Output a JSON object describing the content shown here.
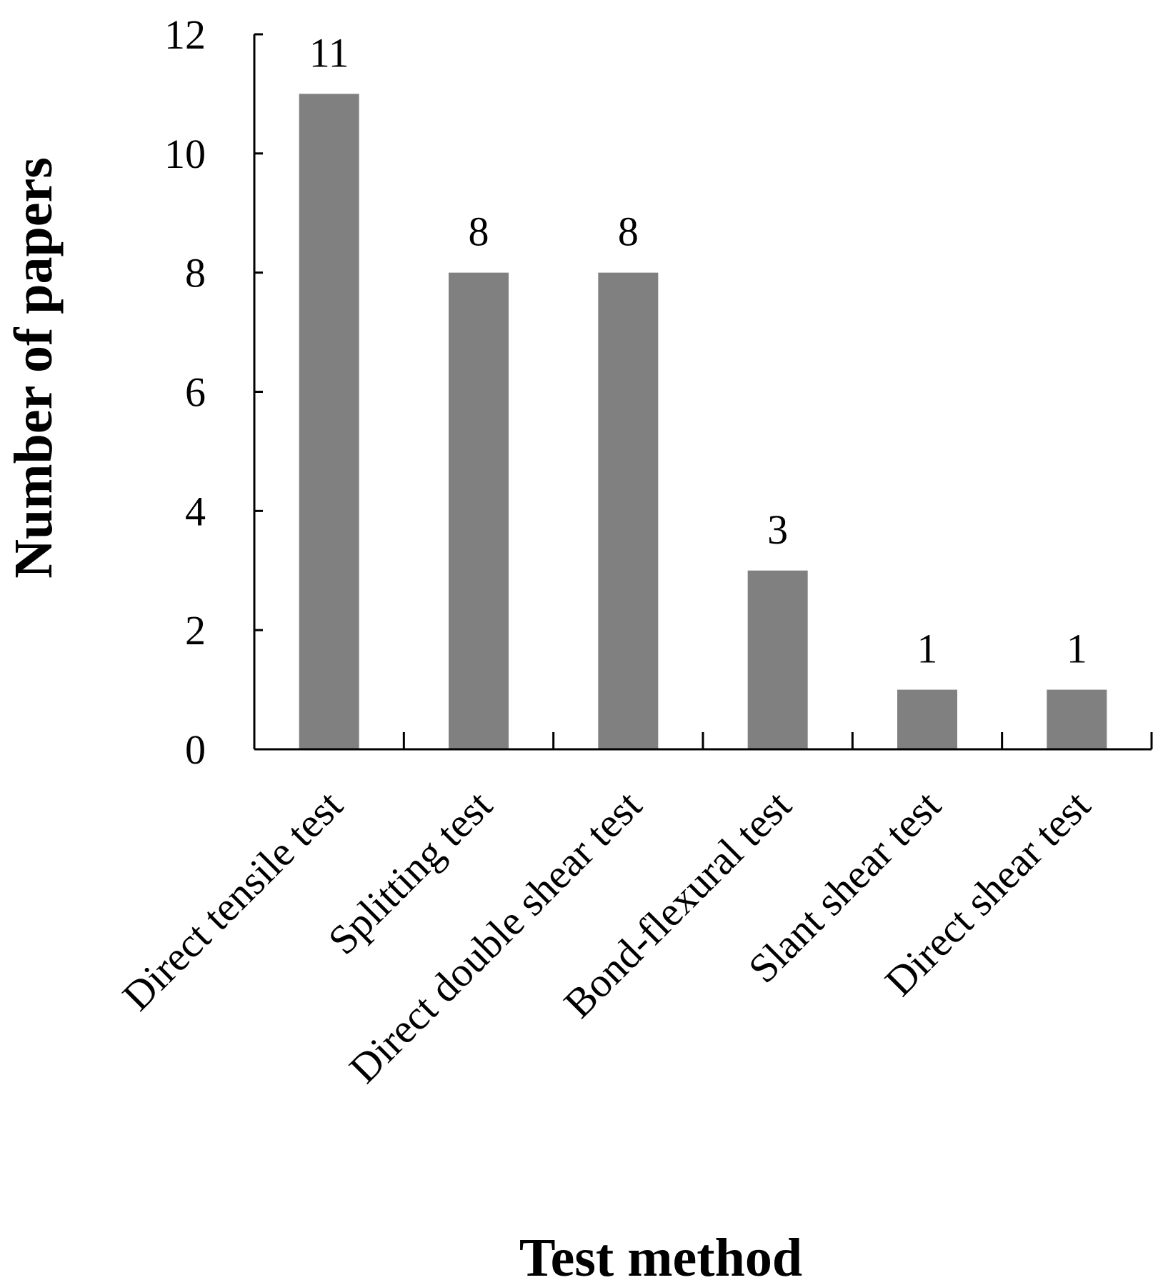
{
  "chart_data": {
    "type": "bar",
    "title": "",
    "xlabel": "Test method",
    "ylabel": "Number of papers",
    "categories": [
      "Direct tensile test",
      "Splitting test",
      "Direct double shear test",
      "Bond-flexural test",
      "Slant shear test",
      "Direct shear test"
    ],
    "values": [
      11,
      8,
      8,
      3,
      1,
      1
    ],
    "data_labels": [
      "11",
      "8",
      "8",
      "3",
      "1",
      "1"
    ],
    "ylim": [
      0,
      12
    ],
    "yticks": [
      "0",
      "2",
      "4",
      "6",
      "8",
      "10",
      "12"
    ],
    "grid": false,
    "legend": "none",
    "bar_color": "#808080",
    "axis_color": "#000000"
  }
}
